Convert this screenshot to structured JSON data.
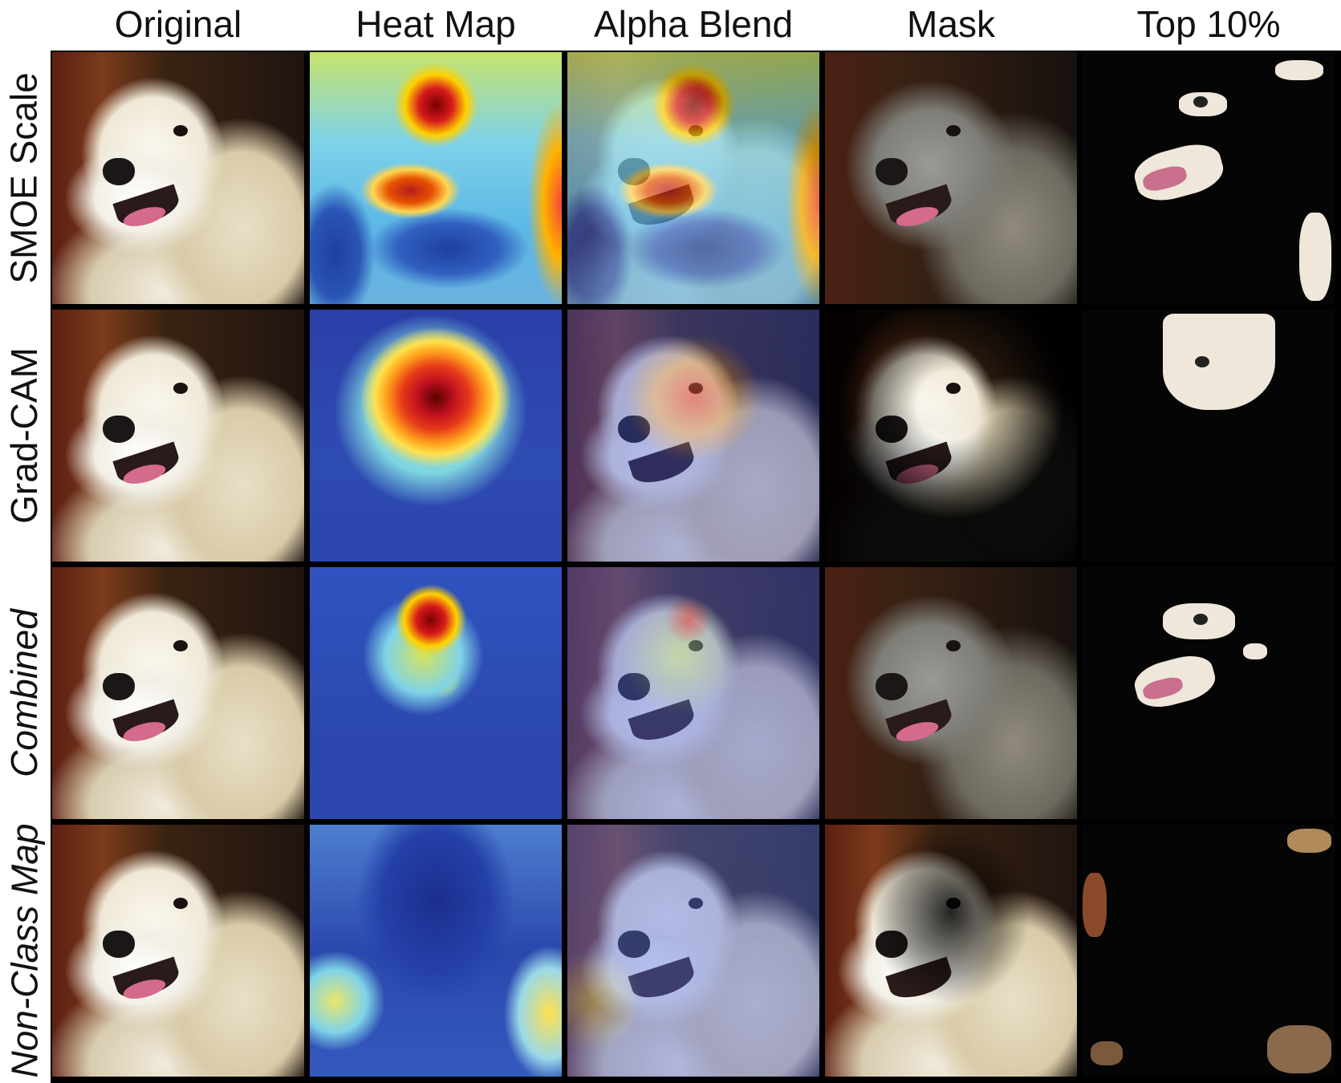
{
  "columns": [
    "Original",
    "Heat Map",
    "Alpha Blend",
    "Mask",
    "Top 10%"
  ],
  "rows": [
    {
      "label": "SMOE Scale",
      "italic": false
    },
    {
      "label": "Grad-CAM",
      "italic": false
    },
    {
      "label": "Combined",
      "italic": true
    },
    {
      "label": "Non-Class Map",
      "italic": true
    }
  ]
}
